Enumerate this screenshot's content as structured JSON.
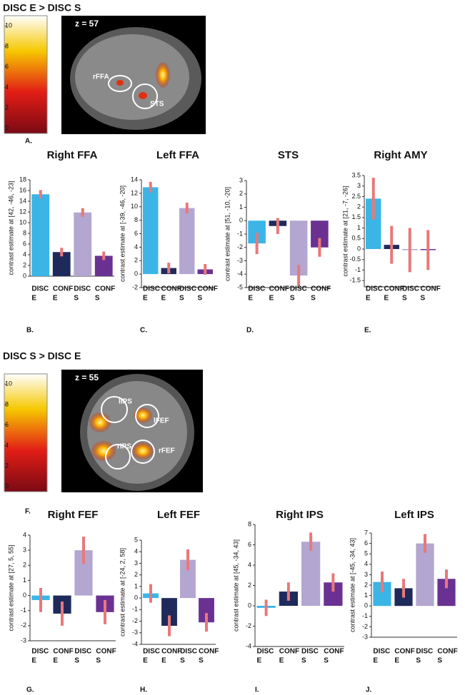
{
  "sections": [
    {
      "title": "DISC E > DISC S",
      "z_label": "z = 57",
      "roi_labels": [
        "rFFA",
        "STS"
      ],
      "panel_label": "A.",
      "colorbar_lim": [
        -0.5,
        11
      ],
      "colorbar_ticks": [
        0,
        2,
        4,
        6,
        8,
        10
      ]
    },
    {
      "title": "DISC S > DISC E",
      "z_label": "z = 55",
      "roi_labels": [
        "lIPS",
        "lFEF",
        "rIPS",
        "rFEF"
      ],
      "panel_label": "F.",
      "colorbar_lim": [
        -0.5,
        11
      ],
      "colorbar_ticks": [
        0,
        2,
        4,
        6,
        8,
        10
      ]
    }
  ],
  "chart_data": [
    {
      "type": "bar",
      "title": "Right FFA",
      "ylabel": "contrast estimate at [42, -46, -23]",
      "panel_label": "B.",
      "categories": [
        [
          "DISC",
          "E"
        ],
        [
          "CONF",
          "E"
        ],
        [
          "DISC",
          "S"
        ],
        [
          "CONF",
          "S"
        ]
      ],
      "values": [
        15.3,
        4.5,
        11.9,
        3.8
      ],
      "errors": [
        0.8,
        0.8,
        0.8,
        0.8
      ],
      "colors": [
        "#3ab5e6",
        "#1f2a5c",
        "#b3a6d0",
        "#6a3192"
      ],
      "error_color": "#e8787a",
      "ylim": [
        0,
        18
      ],
      "yticks": [
        0,
        2,
        4,
        6,
        8,
        10,
        12,
        14,
        16,
        18
      ]
    },
    {
      "type": "bar",
      "title": "Left FFA",
      "ylabel": "contrast estimate at [-39, -46, -20]",
      "panel_label": "C.",
      "categories": [
        [
          "DISC",
          "E"
        ],
        [
          "CONF",
          "E"
        ],
        [
          "DISC",
          "S"
        ],
        [
          "CONF",
          "S"
        ]
      ],
      "values": [
        12.9,
        0.9,
        9.8,
        0.7
      ],
      "errors": [
        0.8,
        0.8,
        0.8,
        0.8
      ],
      "colors": [
        "#3ab5e6",
        "#1f2a5c",
        "#b3a6d0",
        "#6a3192"
      ],
      "error_color": "#e8787a",
      "ylim": [
        -2,
        14
      ],
      "yticks": [
        -2,
        0,
        2,
        4,
        6,
        8,
        10,
        12,
        14
      ]
    },
    {
      "type": "bar",
      "title": "STS",
      "ylabel": "contrast estimate at [51, -10, -20]",
      "panel_label": "D.",
      "categories": [
        [
          "DISC",
          "E"
        ],
        [
          "CONF",
          "E"
        ],
        [
          "DISC",
          "S"
        ],
        [
          "CONF",
          "S"
        ]
      ],
      "values": [
        -1.7,
        -0.4,
        -4.1,
        -2.0
      ],
      "errors": [
        0.8,
        0.6,
        0.8,
        0.7
      ],
      "colors": [
        "#3ab5e6",
        "#1f2a5c",
        "#b3a6d0",
        "#6a3192"
      ],
      "error_color": "#e8787a",
      "ylim": [
        -5,
        3
      ],
      "yticks": [
        -5,
        -4,
        -3,
        -2,
        -1,
        0,
        1,
        2,
        3
      ]
    },
    {
      "type": "bar",
      "title": "Right  AMY",
      "ylabel": "contrast estimate at [21, -7, -26]",
      "panel_label": "E.",
      "categories": [
        [
          "DISC",
          "E"
        ],
        [
          "CONF",
          "E"
        ],
        [
          "DISC",
          "S"
        ],
        [
          "CONF",
          "S"
        ]
      ],
      "values": [
        2.4,
        0.2,
        -0.05,
        -0.05
      ],
      "errors": [
        1.0,
        0.9,
        1.05,
        0.95
      ],
      "colors": [
        "#3ab5e6",
        "#1f2a5c",
        "#b3a6d0",
        "#6a3192"
      ],
      "error_color": "#e8787a",
      "ylim": [
        -1.8,
        3.5
      ],
      "yticks": [
        -1.5,
        -1,
        -0.5,
        0,
        0.5,
        1,
        1.5,
        2,
        2.5,
        3,
        3.5
      ]
    },
    {
      "type": "bar",
      "title": "Right FEF",
      "ylabel": "contrast estimate at [27, 5, 55]",
      "panel_label": "G.",
      "categories": [
        [
          "DISC",
          "E"
        ],
        [
          "CONF",
          "E"
        ],
        [
          "DISC",
          "S"
        ],
        [
          "CONF",
          "S"
        ]
      ],
      "values": [
        -0.3,
        -1.2,
        3.0,
        -1.1
      ],
      "errors": [
        0.8,
        0.8,
        0.9,
        0.8
      ],
      "colors": [
        "#3ab5e6",
        "#1f2a5c",
        "#b3a6d0",
        "#6a3192"
      ],
      "error_color": "#e8787a",
      "ylim": [
        -3,
        4
      ],
      "yticks": [
        -3,
        -2,
        -1,
        0,
        1,
        2,
        3,
        4
      ]
    },
    {
      "type": "bar",
      "title": "Left FEF",
      "ylabel": "contrast estimate at [-24, 2, 58]",
      "panel_label": "H.",
      "categories": [
        [
          "DISC",
          "E"
        ],
        [
          "CONF",
          "E"
        ],
        [
          "DISC",
          "S"
        ],
        [
          "CONF",
          "S"
        ]
      ],
      "values": [
        0.4,
        -2.4,
        3.3,
        -2.1
      ],
      "errors": [
        0.8,
        0.9,
        0.9,
        0.8
      ],
      "colors": [
        "#3ab5e6",
        "#1f2a5c",
        "#b3a6d0",
        "#6a3192"
      ],
      "error_color": "#e8787a",
      "ylim": [
        -4,
        5
      ],
      "yticks": [
        -4,
        -3,
        -2,
        -1,
        0,
        1,
        2,
        3,
        4,
        5
      ]
    },
    {
      "type": "bar",
      "title": "Right IPS",
      "ylabel": "contrast estimate at [45, -34, 43]",
      "panel_label": "I.",
      "categories": [
        [
          "DISC",
          "E"
        ],
        [
          "CONF",
          "E"
        ],
        [
          "DISC",
          "S"
        ],
        [
          "CONF",
          "S"
        ]
      ],
      "values": [
        -0.2,
        1.4,
        6.3,
        2.3
      ],
      "errors": [
        0.8,
        0.9,
        0.9,
        0.9
      ],
      "colors": [
        "#3ab5e6",
        "#1f2a5c",
        "#b3a6d0",
        "#6a3192"
      ],
      "error_color": "#e8787a",
      "ylim": [
        -4,
        8
      ],
      "yticks": [
        -4,
        -2,
        0,
        2,
        4,
        6,
        8
      ]
    },
    {
      "type": "bar",
      "title": "Left IPS",
      "ylabel": "contrast estimate at [-45, -34, 43]",
      "panel_label": "J.",
      "categories": [
        [
          "DISC",
          "E"
        ],
        [
          "CONF",
          "E"
        ],
        [
          "DISC",
          "S"
        ],
        [
          "CONF",
          "S"
        ]
      ],
      "values": [
        2.3,
        1.7,
        6.0,
        2.6
      ],
      "errors": [
        1.0,
        0.9,
        0.9,
        0.9
      ],
      "colors": [
        "#3ab5e6",
        "#1f2a5c",
        "#b3a6d0",
        "#6a3192"
      ],
      "error_color": "#e8787a",
      "ylim": [
        -3,
        7
      ],
      "yticks": [
        -3,
        -2,
        -1,
        0,
        1,
        2,
        3,
        4,
        5,
        6,
        7
      ]
    }
  ]
}
